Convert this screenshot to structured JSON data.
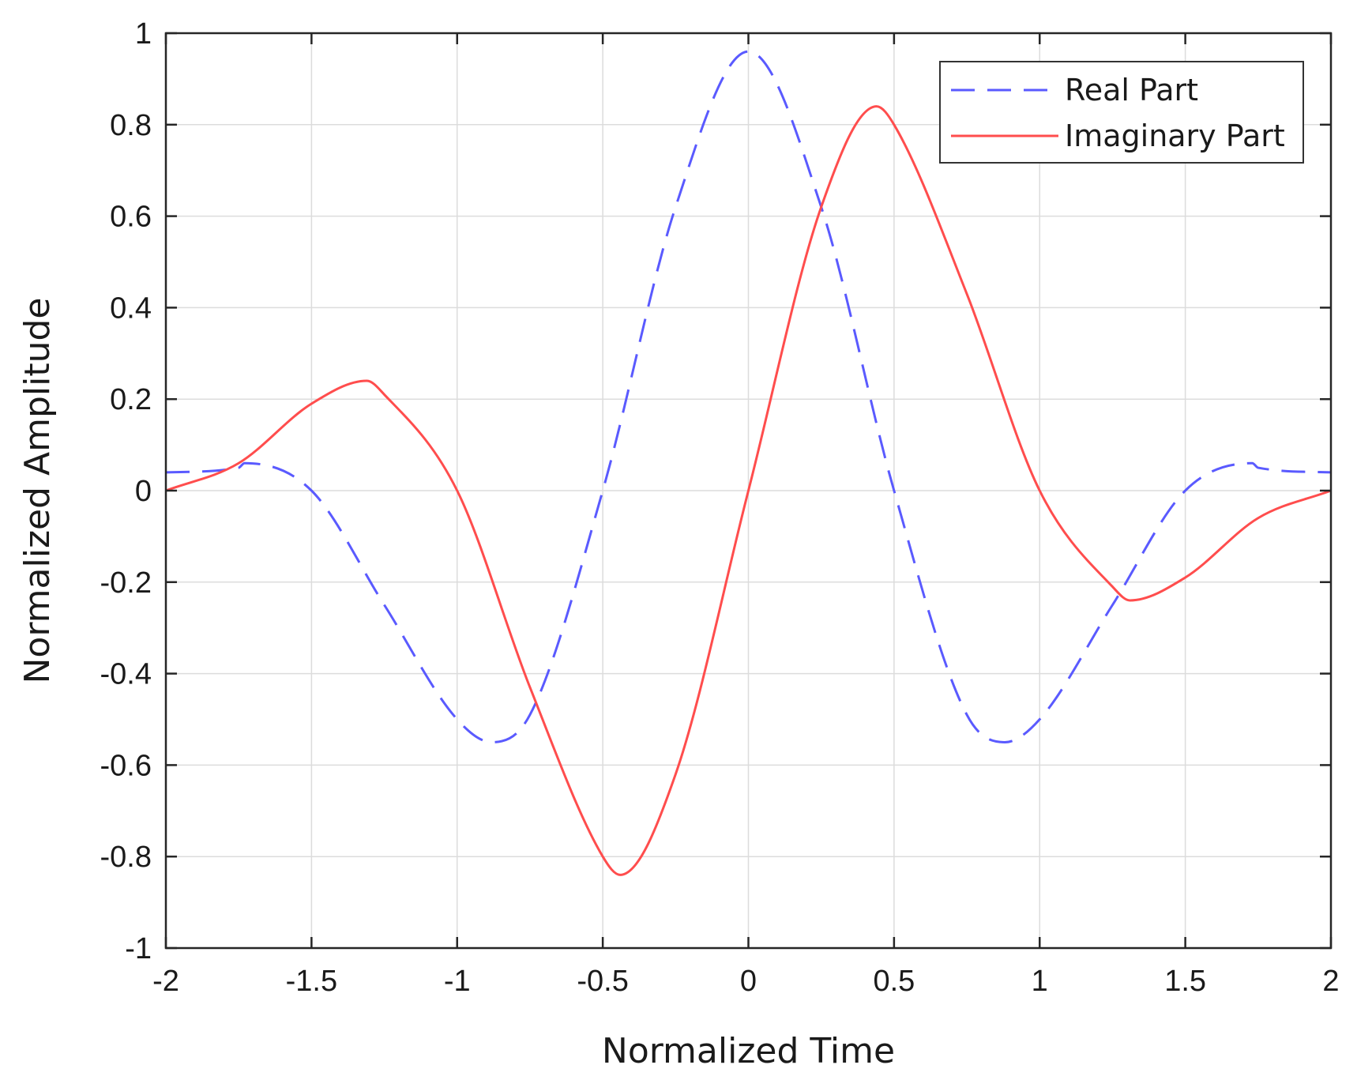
{
  "chart_data": {
    "type": "line",
    "title": "",
    "xlabel": "Normalized Time",
    "ylabel": "Normalized Amplitude",
    "xlim": [
      -2,
      2
    ],
    "ylim": [
      -1,
      1
    ],
    "xticks": [
      -2,
      -1.5,
      -1,
      -0.5,
      0,
      0.5,
      1,
      1.5,
      2
    ],
    "yticks": [
      -1,
      -0.8,
      -0.6,
      -0.4,
      -0.2,
      0,
      0.2,
      0.4,
      0.6,
      0.8,
      1
    ],
    "xtick_labels": [
      "-2",
      "-1.5",
      "-1",
      "-0.5",
      "0",
      "0.5",
      "1",
      "1.5",
      "2"
    ],
    "ytick_labels": [
      "-1",
      "-0.8",
      "-0.6",
      "-0.4",
      "-0.2",
      "0",
      "0.2",
      "0.4",
      "0.6",
      "0.8",
      "1"
    ],
    "grid": true,
    "legend_position": "top-right",
    "x": [
      -2,
      -1.75,
      -1.5,
      -1.25,
      -1,
      -0.75,
      -0.5,
      -0.25,
      0,
      0.25,
      0.5,
      0.75,
      1,
      1.25,
      1.5,
      1.75,
      2
    ],
    "series": [
      {
        "name": "Real Part",
        "color": "#5a5aff",
        "style": "dashed",
        "values": [
          0.04,
          0.05,
          0.0,
          -0.25,
          -0.5,
          -0.49,
          0.0,
          0.62,
          0.96,
          0.62,
          0.0,
          -0.49,
          -0.5,
          -0.25,
          0.0,
          0.05,
          0.04
        ],
        "extrema": [
          {
            "x": -1.73,
            "y": 0.06
          },
          {
            "x": -0.88,
            "y": -0.55
          },
          {
            "x": 0.0,
            "y": 0.96
          },
          {
            "x": 0.88,
            "y": -0.55
          },
          {
            "x": 1.73,
            "y": 0.06
          }
        ]
      },
      {
        "name": "Imaginary Part",
        "color": "#ff4d4d",
        "style": "solid",
        "values": [
          0.0,
          0.06,
          0.19,
          0.21,
          0.0,
          -0.43,
          -0.8,
          -0.62,
          0.0,
          0.62,
          0.8,
          0.43,
          0.0,
          -0.21,
          -0.19,
          -0.06,
          0.0
        ],
        "extrema": [
          {
            "x": -1.31,
            "y": 0.24
          },
          {
            "x": -0.44,
            "y": -0.84
          },
          {
            "x": 0.44,
            "y": 0.84
          },
          {
            "x": 1.31,
            "y": -0.24
          }
        ]
      }
    ]
  }
}
